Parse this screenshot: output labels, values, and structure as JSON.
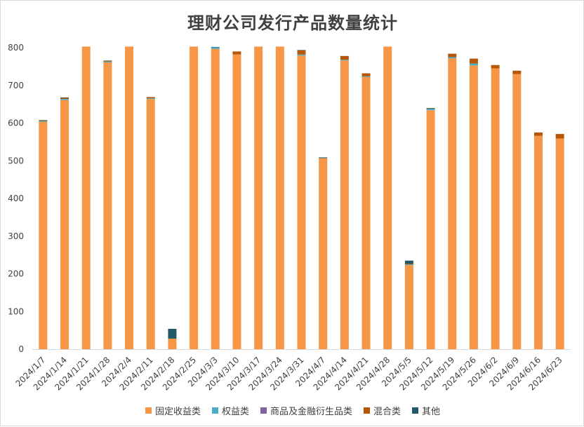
{
  "chart_data": {
    "type": "bar",
    "stacked": true,
    "title": "理财公司发行产品数量统计",
    "xlabel": "",
    "ylabel": "",
    "ylim": [
      0,
      800
    ],
    "yticks": [
      0,
      100,
      200,
      300,
      400,
      500,
      600,
      700,
      800
    ],
    "grid": false,
    "legend_position": "bottom",
    "categories": [
      "2024/1/7",
      "2024/1/14",
      "2024/1/21",
      "2024/1/28",
      "2024/2/4",
      "2024/2/11",
      "2024/2/18",
      "2024/2/25",
      "2024/3/3",
      "2024/3/10",
      "2024/3/17",
      "2024/3/24",
      "2024/3/31",
      "2024/4/7",
      "2024/4/14",
      "2024/4/21",
      "2024/4/28",
      "2024/5/5",
      "2024/5/12",
      "2024/5/19",
      "2024/5/26",
      "2024/6/2",
      "2024/6/9",
      "2024/6/16",
      "2024/6/23"
    ],
    "series": [
      {
        "name": "固定收益类",
        "color": "#F79646",
        "values": [
          603,
          661,
          803,
          761,
          803,
          664,
          28,
          803,
          797,
          782,
          803,
          803,
          779,
          506,
          766,
          722,
          803,
          223,
          634,
          772,
          753,
          745,
          730,
          566,
          559
        ]
      },
      {
        "name": "权益类",
        "color": "#4BACC6",
        "values": [
          2,
          3,
          0,
          2,
          0,
          2,
          0,
          0,
          4,
          0,
          0,
          0,
          3,
          1,
          2,
          2,
          0,
          2,
          4,
          3,
          5,
          0,
          0,
          0,
          0
        ]
      },
      {
        "name": "商品及金融衍生品类",
        "color": "#8064A2",
        "values": [
          0,
          0,
          0,
          0,
          0,
          0,
          0,
          0,
          0,
          0,
          0,
          0,
          0,
          0,
          0,
          0,
          0,
          0,
          0,
          0,
          0,
          0,
          0,
          0,
          0
        ]
      },
      {
        "name": "混合类",
        "color": "#B65708",
        "values": [
          2,
          3,
          0,
          2,
          0,
          3,
          0,
          0,
          0,
          8,
          0,
          0,
          11,
          1,
          10,
          8,
          0,
          2,
          1,
          9,
          13,
          9,
          9,
          9,
          12
        ]
      },
      {
        "name": "其他",
        "color": "#215968",
        "values": [
          1,
          1,
          0,
          1,
          0,
          0,
          26,
          0,
          1,
          0,
          0,
          0,
          1,
          1,
          0,
          0,
          0,
          8,
          1,
          0,
          0,
          0,
          0,
          0,
          0
        ]
      }
    ]
  }
}
